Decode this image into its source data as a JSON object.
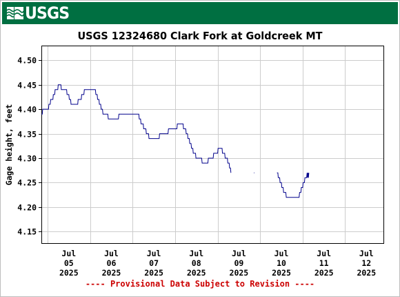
{
  "header": {
    "agency_logo_text": "USGS",
    "brand_color": "#006f41"
  },
  "chart_data": {
    "type": "line",
    "title": "USGS 12324680 Clark Fork at Goldcreek MT",
    "ylabel": "Gage height, feet",
    "xlabel": "",
    "ylim": [
      4.125,
      4.53
    ],
    "y_ticks": [
      "4.15",
      "4.20",
      "4.25",
      "4.30",
      "4.35",
      "4.40",
      "4.45",
      "4.50"
    ],
    "x_range_days": [
      "2025-07-04T20:30",
      "2025-07-12T22:00"
    ],
    "x_ticks": [
      {
        "month": "Jul",
        "day": "05",
        "year": "2025"
      },
      {
        "month": "Jul",
        "day": "06",
        "year": "2025"
      },
      {
        "month": "Jul",
        "day": "07",
        "year": "2025"
      },
      {
        "month": "Jul",
        "day": "08",
        "year": "2025"
      },
      {
        "month": "Jul",
        "day": "09",
        "year": "2025"
      },
      {
        "month": "Jul",
        "day": "10",
        "year": "2025"
      },
      {
        "month": "Jul",
        "day": "11",
        "year": "2025"
      },
      {
        "month": "Jul",
        "day": "12",
        "year": "2025"
      }
    ],
    "grid": true,
    "line_color": "#00008b",
    "series": [
      {
        "segments": [
          [
            [
              "2025-07-04T20:30",
              4.39
            ],
            [
              "2025-07-04T21:00",
              4.39
            ],
            [
              "2025-07-04T21:15",
              4.4
            ],
            [
              "2025-07-05T00:30",
              4.4
            ],
            [
              "2025-07-05T00:45",
              4.41
            ],
            [
              "2025-07-05T01:30",
              4.41
            ],
            [
              "2025-07-05T01:45",
              4.42
            ],
            [
              "2025-07-05T03:00",
              4.42
            ],
            [
              "2025-07-05T03:15",
              4.43
            ],
            [
              "2025-07-05T04:00",
              4.43
            ],
            [
              "2025-07-05T04:15",
              4.44
            ],
            [
              "2025-07-05T05:45",
              4.44
            ],
            [
              "2025-07-05T06:00",
              4.45
            ],
            [
              "2025-07-05T07:30",
              4.45
            ],
            [
              "2025-07-05T07:45",
              4.44
            ],
            [
              "2025-07-05T10:45",
              4.44
            ],
            [
              "2025-07-05T11:00",
              4.43
            ],
            [
              "2025-07-05T12:00",
              4.43
            ],
            [
              "2025-07-05T12:15",
              4.42
            ],
            [
              "2025-07-05T13:00",
              4.42
            ],
            [
              "2025-07-05T13:15",
              4.41
            ],
            [
              "2025-07-05T17:00",
              4.41
            ],
            [
              "2025-07-05T17:15",
              4.42
            ],
            [
              "2025-07-05T19:00",
              4.42
            ],
            [
              "2025-07-05T19:15",
              4.43
            ],
            [
              "2025-07-05T20:30",
              4.43
            ],
            [
              "2025-07-05T20:45",
              4.44
            ],
            [
              "2025-07-06T03:00",
              4.44
            ],
            [
              "2025-07-06T03:15",
              4.43
            ],
            [
              "2025-07-06T04:00",
              4.43
            ],
            [
              "2025-07-06T04:15",
              4.42
            ],
            [
              "2025-07-06T05:00",
              4.42
            ],
            [
              "2025-07-06T05:15",
              4.41
            ],
            [
              "2025-07-06T06:00",
              4.41
            ],
            [
              "2025-07-06T06:15",
              4.4
            ],
            [
              "2025-07-06T07:00",
              4.4
            ],
            [
              "2025-07-06T07:15",
              4.39
            ],
            [
              "2025-07-06T10:00",
              4.39
            ],
            [
              "2025-07-06T10:15",
              4.38
            ],
            [
              "2025-07-06T16:00",
              4.38
            ],
            [
              "2025-07-06T16:15",
              4.39
            ],
            [
              "2025-07-07T03:30",
              4.39
            ],
            [
              "2025-07-07T03:45",
              4.38
            ],
            [
              "2025-07-07T04:30",
              4.38
            ],
            [
              "2025-07-07T04:45",
              4.37
            ],
            [
              "2025-07-07T06:00",
              4.37
            ],
            [
              "2025-07-07T06:15",
              4.36
            ],
            [
              "2025-07-07T07:30",
              4.36
            ],
            [
              "2025-07-07T07:45",
              4.35
            ],
            [
              "2025-07-07T09:00",
              4.35
            ],
            [
              "2025-07-07T09:15",
              4.34
            ],
            [
              "2025-07-07T15:00",
              4.34
            ],
            [
              "2025-07-07T15:15",
              4.35
            ],
            [
              "2025-07-07T20:00",
              4.35
            ],
            [
              "2025-07-07T20:15",
              4.36
            ],
            [
              "2025-07-08T01:00",
              4.36
            ],
            [
              "2025-07-08T01:15",
              4.37
            ],
            [
              "2025-07-08T04:30",
              4.37
            ],
            [
              "2025-07-08T04:45",
              4.36
            ],
            [
              "2025-07-08T06:00",
              4.36
            ],
            [
              "2025-07-08T06:15",
              4.35
            ],
            [
              "2025-07-08T07:00",
              4.35
            ],
            [
              "2025-07-08T07:15",
              4.34
            ],
            [
              "2025-07-08T08:00",
              4.34
            ],
            [
              "2025-07-08T08:15",
              4.33
            ],
            [
              "2025-07-08T09:00",
              4.33
            ],
            [
              "2025-07-08T09:15",
              4.32
            ],
            [
              "2025-07-08T10:00",
              4.32
            ],
            [
              "2025-07-08T10:15",
              4.31
            ],
            [
              "2025-07-08T11:30",
              4.31
            ],
            [
              "2025-07-08T11:45",
              4.3
            ],
            [
              "2025-07-08T15:00",
              4.3
            ],
            [
              "2025-07-08T15:15",
              4.29
            ],
            [
              "2025-07-08T18:30",
              4.29
            ],
            [
              "2025-07-08T18:45",
              4.3
            ],
            [
              "2025-07-08T21:30",
              4.3
            ],
            [
              "2025-07-08T21:45",
              4.31
            ],
            [
              "2025-07-09T00:00",
              4.31
            ],
            [
              "2025-07-09T00:15",
              4.32
            ],
            [
              "2025-07-09T02:30",
              4.32
            ],
            [
              "2025-07-09T02:45",
              4.31
            ],
            [
              "2025-07-09T04:00",
              4.31
            ],
            [
              "2025-07-09T04:15",
              4.3
            ],
            [
              "2025-07-09T05:30",
              4.3
            ],
            [
              "2025-07-09T05:45",
              4.29
            ],
            [
              "2025-07-09T06:30",
              4.29
            ],
            [
              "2025-07-09T06:45",
              4.28
            ],
            [
              "2025-07-09T07:15",
              4.28
            ],
            [
              "2025-07-09T07:30",
              4.27
            ]
          ],
          [
            [
              "2025-07-09T20:30",
              4.27
            ],
            [
              "2025-07-09T20:45",
              4.27
            ]
          ],
          [
            [
              "2025-07-10T09:30",
              4.27
            ],
            [
              "2025-07-10T10:00",
              4.27
            ],
            [
              "2025-07-10T10:15",
              4.26
            ],
            [
              "2025-07-10T11:00",
              4.26
            ],
            [
              "2025-07-10T11:15",
              4.25
            ],
            [
              "2025-07-10T12:00",
              4.25
            ],
            [
              "2025-07-10T12:15",
              4.24
            ],
            [
              "2025-07-10T13:00",
              4.24
            ],
            [
              "2025-07-10T13:15",
              4.23
            ],
            [
              "2025-07-10T14:30",
              4.23
            ],
            [
              "2025-07-10T14:45",
              4.22
            ],
            [
              "2025-07-10T22:00",
              4.22
            ],
            [
              "2025-07-10T22:15",
              4.23
            ],
            [
              "2025-07-10T23:00",
              4.23
            ],
            [
              "2025-07-10T23:15",
              4.24
            ],
            [
              "2025-07-11T00:00",
              4.24
            ],
            [
              "2025-07-11T00:15",
              4.25
            ],
            [
              "2025-07-11T01:00",
              4.25
            ],
            [
              "2025-07-11T01:15",
              4.26
            ],
            [
              "2025-07-11T02:15",
              4.26
            ],
            [
              "2025-07-11T02:30",
              4.27
            ],
            [
              "2025-07-11T02:45",
              4.26
            ],
            [
              "2025-07-11T03:00",
              4.27
            ],
            [
              "2025-07-11T03:15",
              4.26
            ],
            [
              "2025-07-11T03:30",
              4.27
            ]
          ]
        ]
      }
    ]
  },
  "footer": {
    "provisional_note": "---- Provisional Data Subject to Revision ----"
  }
}
